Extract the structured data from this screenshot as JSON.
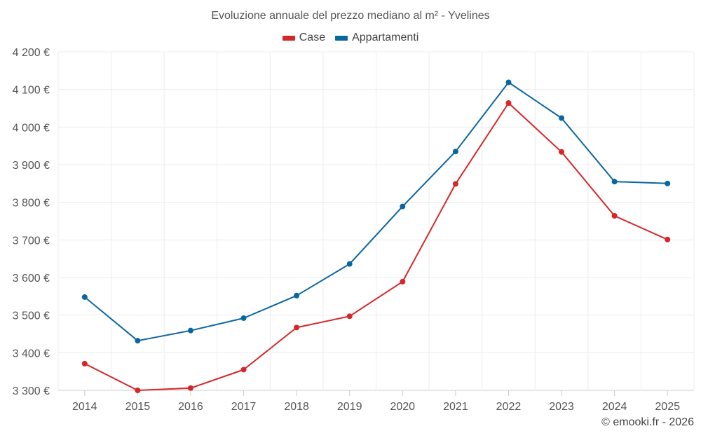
{
  "chart_data": {
    "type": "line",
    "title": "Evoluzione annuale del prezzo mediano al m² - Yvelines",
    "categories": [
      "2014",
      "2015",
      "2016",
      "2017",
      "2018",
      "2019",
      "2020",
      "2021",
      "2022",
      "2023",
      "2024",
      "2025"
    ],
    "series": [
      {
        "name": "Case",
        "color": "#d62728",
        "values": [
          3371,
          3300,
          3306,
          3355,
          3467,
          3497,
          3589,
          3849,
          4064,
          3934,
          3764,
          3701
        ]
      },
      {
        "name": "Appartamenti",
        "color": "#0a66a0",
        "values": [
          3548,
          3432,
          3459,
          3492,
          3552,
          3636,
          3789,
          3935,
          4119,
          4024,
          3855,
          3850
        ]
      }
    ],
    "ylim": [
      3300,
      4200
    ],
    "y_ticks": [
      "3 300 €",
      "3 400 €",
      "3 500 €",
      "3 600 €",
      "3 700 €",
      "3 800 €",
      "3 900 €",
      "4 000 €",
      "4 100 €",
      "4 200 €"
    ],
    "xlabel": "",
    "ylabel": "",
    "grid": true,
    "legend_position": "top-center"
  },
  "credit": "© emooki.fr - 2026"
}
